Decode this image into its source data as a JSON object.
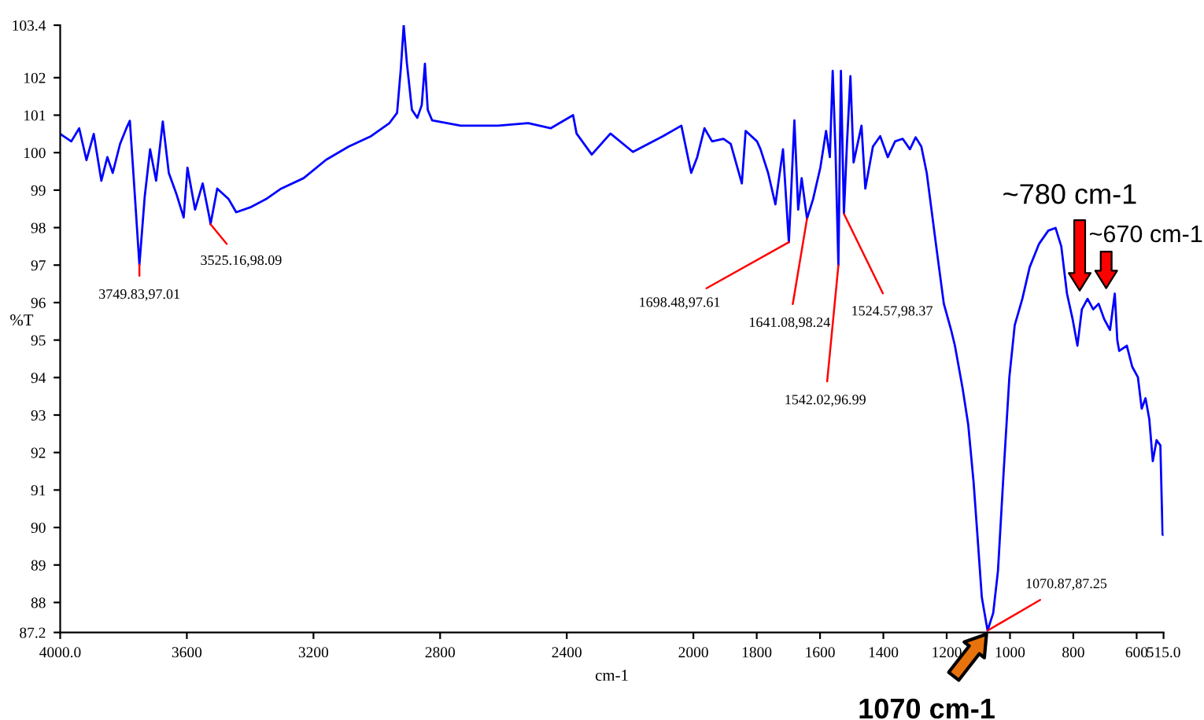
{
  "chart_data": {
    "type": "line",
    "xlabel": "cm-1",
    "ylabel": "%T",
    "xlim": [
      4000,
      515
    ],
    "ylim": [
      87.2,
      103.4
    ],
    "xticks": [
      {
        "value": 4000,
        "label": "4000.0"
      },
      3600,
      3200,
      2800,
      2400,
      2000,
      1800,
      1600,
      1400,
      1200,
      1000,
      800,
      600,
      {
        "value": 515,
        "label": "515.0"
      }
    ],
    "yticks": [
      87.2,
      88,
      89,
      90,
      91,
      92,
      93,
      94,
      95,
      96,
      97,
      98,
      99,
      100,
      101,
      102,
      103.4
    ],
    "grid": false,
    "marker": "none",
    "line_style": "solid",
    "series": [
      {
        "color": "#0000ff",
        "x": [
          4000,
          3965,
          3940,
          3917,
          3894,
          3870,
          3851,
          3834,
          3811,
          3791,
          3780,
          3770,
          3749.83,
          3733,
          3716,
          3697,
          3676,
          3657,
          3633,
          3610,
          3598,
          3574,
          3550,
          3527,
          3525.16,
          3504,
          3468,
          3444,
          3397,
          3350,
          3302,
          3231,
          3160,
          3089,
          3018,
          2960,
          2936,
          2924,
          2915,
          2905,
          2889,
          2872,
          2858,
          2848,
          2839,
          2825,
          2735,
          2617,
          2522,
          2451,
          2380,
          2369,
          2321,
          2262,
          2191,
          2096,
          2038,
          2007,
          1988,
          1965,
          1941,
          1905,
          1882,
          1847,
          1835,
          1799,
          1788,
          1764,
          1741,
          1717,
          1698.48,
          1681,
          1669,
          1658,
          1641.08,
          1622,
          1599,
          1581,
          1569,
          1560,
          1551,
          1542.02,
          1534,
          1524.57,
          1515,
          1504,
          1494,
          1469,
          1457,
          1433,
          1410,
          1386,
          1363,
          1339,
          1316,
          1298,
          1280,
          1263,
          1233,
          1209,
          1186,
          1174,
          1150,
          1132,
          1115,
          1103,
          1089,
          1070.87,
          1053,
          1038,
          1020,
          1002,
          985,
          961,
          938,
          908,
          879,
          856,
          838,
          820,
          802,
          787,
          773,
          755,
          737,
          720,
          702,
          684,
          669,
          661,
          655,
          631,
          614,
          596,
          584,
          572,
          560,
          549,
          537,
          525,
          521,
          518,
          515
        ],
        "values": [
          100.5,
          100.3,
          100.65,
          99.8,
          100.5,
          99.25,
          99.88,
          99.46,
          100.23,
          100.65,
          100.85,
          99.6,
          97.01,
          98.83,
          100.09,
          99.25,
          100.83,
          99.46,
          98.9,
          98.27,
          99.6,
          98.48,
          99.18,
          98.2,
          98.09,
          99.04,
          98.76,
          98.41,
          98.55,
          98.76,
          99.04,
          99.32,
          99.81,
          100.16,
          100.44,
          100.79,
          101.06,
          102.25,
          103.4,
          102.39,
          101.14,
          100.93,
          101.27,
          102.37,
          101.14,
          100.86,
          100.72,
          100.72,
          100.79,
          100.65,
          101.0,
          100.51,
          99.95,
          100.51,
          100.02,
          100.44,
          100.72,
          99.46,
          99.88,
          100.65,
          100.3,
          100.37,
          100.23,
          99.18,
          100.58,
          100.3,
          100.09,
          99.46,
          98.62,
          100.09,
          97.61,
          100.86,
          98.48,
          99.32,
          98.24,
          98.76,
          99.6,
          100.58,
          99.88,
          102.18,
          100.02,
          96.99,
          102.18,
          98.37,
          100.23,
          102.04,
          99.74,
          100.72,
          99.04,
          100.16,
          100.44,
          99.88,
          100.3,
          100.37,
          100.09,
          100.41,
          100.16,
          99.46,
          97.5,
          95.97,
          95.27,
          94.85,
          93.73,
          92.75,
          91.21,
          89.81,
          88.14,
          87.25,
          87.72,
          88.84,
          91.49,
          94.01,
          95.4,
          96.1,
          96.94,
          97.57,
          97.92,
          97.99,
          97.5,
          96.24,
          95.55,
          94.85,
          95.82,
          96.1,
          95.82,
          95.97,
          95.55,
          95.27,
          96.24,
          94.99,
          94.71,
          94.85,
          94.29,
          94.01,
          93.17,
          93.45,
          92.89,
          91.77,
          92.33,
          92.19,
          90.79,
          89.81,
          89.8
        ]
      }
    ],
    "annotations": [
      {
        "text": "3749.83,97.01",
        "x": 3749.83,
        "y": 97.01
      },
      {
        "text": "3525.16,98.09",
        "x": 3525.16,
        "y": 98.09
      },
      {
        "text": "1698.48,97.61",
        "x": 1698.48,
        "y": 97.61
      },
      {
        "text": "1641.08,98.24",
        "x": 1641.08,
        "y": 98.24
      },
      {
        "text": "1542.02,96.99",
        "x": 1542.02,
        "y": 96.99
      },
      {
        "text": "1524.57,98.37",
        "x": 1524.57,
        "y": 98.37
      },
      {
        "text": "1070.87,87.25",
        "x": 1070.87,
        "y": 87.25
      },
      "~780 cm-1",
      "~670 cm-1",
      {
        "text": "1070 cm-1",
        "x": 1070,
        "y": 87.2
      }
    ]
  }
}
